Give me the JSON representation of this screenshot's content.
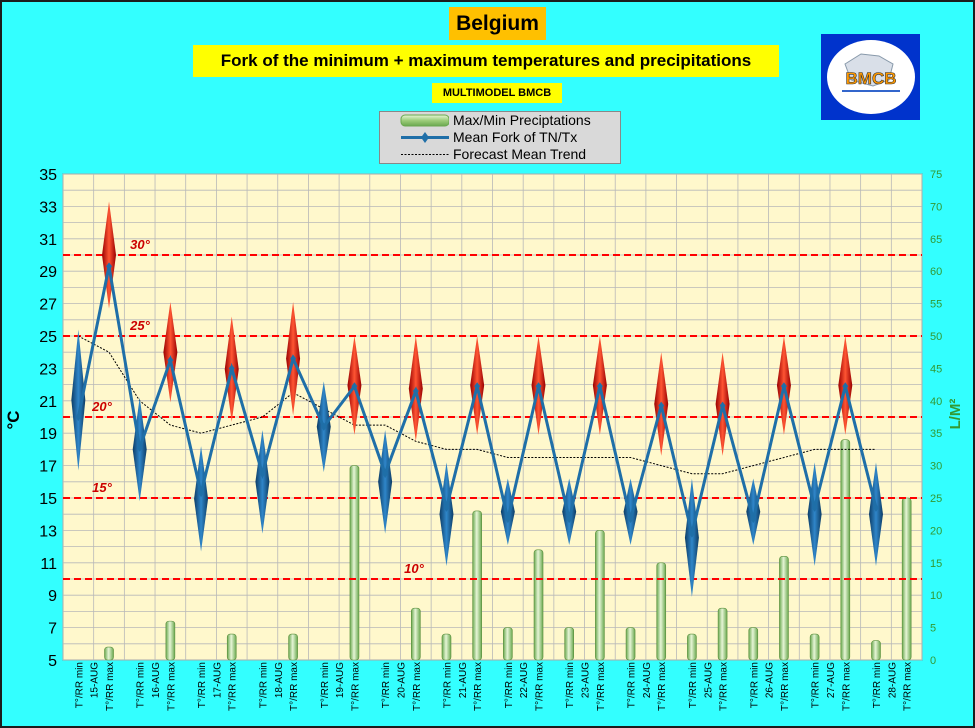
{
  "title": "Belgium",
  "subtitle": "Fork of the minimum + maximum temperatures and precipitations",
  "model_label": "MULTIMODEL BMCB",
  "logo_text": "BMCB",
  "legend": {
    "precip": "Max/Min Preciptations",
    "mean": "Mean Fork of TN/Tx",
    "trend": "Forecast Mean Trend"
  },
  "colors": {
    "background": "#33ffff",
    "plot": "#fff8cc",
    "mean_line": "#1f6fa8",
    "spike_max": "#cc0000",
    "spike_min": "#1a5f99",
    "precip": "#9ccc7a",
    "threshold": "#ff0000",
    "right_axis": "#339933"
  },
  "chart_data": {
    "type": "line",
    "title": "Fork of the minimum + maximum temperatures and precipitations",
    "ylabel": "°C",
    "y2label": "L/M²",
    "ylim": [
      5,
      35
    ],
    "y2lim": [
      0,
      75
    ],
    "yticks": [
      5,
      7,
      9,
      11,
      13,
      15,
      17,
      19,
      21,
      23,
      25,
      27,
      29,
      31,
      33,
      35
    ],
    "y2ticks": [
      0,
      5,
      10,
      15,
      20,
      25,
      30,
      35,
      40,
      45,
      50,
      55,
      60,
      65,
      70,
      75
    ],
    "grid": true,
    "legend_position": "top-center",
    "categories": [
      "T°/RR min",
      "T°/RR max",
      "T°/RR min",
      "T°/RR max",
      "T°/RR min",
      "T°/RR max",
      "T°/RR min",
      "T°/RR max",
      "T°/RR min",
      "T°/RR max",
      "T°/RR min",
      "T°/RR max",
      "T°/RR min",
      "T°/RR max",
      "T°/RR min",
      "T°/RR max",
      "T°/RR min",
      "T°/RR max",
      "T°/RR min",
      "T°/RR max",
      "T°/RR min",
      "T°/RR max",
      "T°/RR min",
      "T°/RR max",
      "T°/RR min",
      "T°/RR max",
      "T°/RR min",
      "T°/RR max"
    ],
    "dates": [
      "15-AUG",
      "16-AUG",
      "17-AUG",
      "18-AUG",
      "19-AUG",
      "20-AUG",
      "21-AUG",
      "22-AUG",
      "23-AUG",
      "24-AUG",
      "25-AUG",
      "26-AUG",
      "27-AUG",
      "28-AUG"
    ],
    "series": [
      {
        "name": "Mean Fork of TN/Tx",
        "values": [
          20.0,
          29.3,
          18.1,
          23.5,
          15.3,
          23.0,
          16.5,
          23.6,
          19.4,
          21.9,
          16.5,
          21.6,
          14.4,
          21.9,
          13.7,
          21.9,
          13.7,
          21.9,
          13.7,
          20.7,
          12.8,
          20.7,
          13.7,
          21.9,
          14.4,
          21.9,
          14.4,
          0
        ]
      },
      {
        "name": "Max/Min Preciptations",
        "values": [
          0,
          2,
          0,
          6,
          0,
          4,
          0,
          4,
          0,
          30,
          0,
          8,
          4,
          23,
          5,
          17,
          5,
          20,
          5,
          15,
          4,
          8,
          5,
          16,
          4,
          34,
          3,
          25
        ]
      },
      {
        "name": "Forecast Mean Trend",
        "values": [
          25.0,
          24.0,
          21.0,
          19.5,
          19.0,
          19.5,
          20.0,
          21.5,
          20.5,
          19.5,
          19.5,
          18.5,
          18.0,
          18.0,
          17.5,
          17.5,
          17.5,
          17.5,
          17.5,
          17.0,
          16.5,
          16.5,
          17.0,
          17.5,
          18.0,
          18.0,
          18.0,
          null
        ]
      }
    ],
    "spikes": [
      {
        "low": 16.7,
        "high": 25.4
      },
      {
        "low": 26.7,
        "high": 33.3
      },
      {
        "low": 14.8,
        "high": 21.2
      },
      {
        "low": 20.9,
        "high": 27.1
      },
      {
        "low": 11.7,
        "high": 18.2
      },
      {
        "low": 19.7,
        "high": 26.2
      },
      {
        "low": 12.8,
        "high": 19.2
      },
      {
        "low": 20.1,
        "high": 27.1
      },
      {
        "low": 16.6,
        "high": 22.2
      },
      {
        "low": 18.9,
        "high": 25.0
      },
      {
        "low": 12.8,
        "high": 19.2
      },
      {
        "low": 18.5,
        "high": 25.0
      },
      {
        "low": 10.8,
        "high": 17.2
      },
      {
        "low": 18.9,
        "high": 25.0
      },
      {
        "low": 12.1,
        "high": 16.2
      },
      {
        "low": 18.9,
        "high": 25.0
      },
      {
        "low": 12.1,
        "high": 16.2
      },
      {
        "low": 18.9,
        "high": 25.0
      },
      {
        "low": 12.1,
        "high": 16.2
      },
      {
        "low": 17.6,
        "high": 24.0
      },
      {
        "low": 8.9,
        "high": 16.2
      },
      {
        "low": 17.6,
        "high": 24.0
      },
      {
        "low": 12.1,
        "high": 16.2
      },
      {
        "low": 18.9,
        "high": 25.0
      },
      {
        "low": 10.8,
        "high": 17.2
      },
      {
        "low": 18.9,
        "high": 25.0
      },
      {
        "low": 10.8,
        "high": 17.2
      },
      null
    ],
    "thresholds": [
      {
        "value": 30,
        "label": "30°"
      },
      {
        "value": 25,
        "label": "25°"
      },
      {
        "value": 20,
        "label": "20°"
      },
      {
        "value": 15,
        "label": "15°"
      },
      {
        "value": 10,
        "label": "10°"
      }
    ]
  }
}
